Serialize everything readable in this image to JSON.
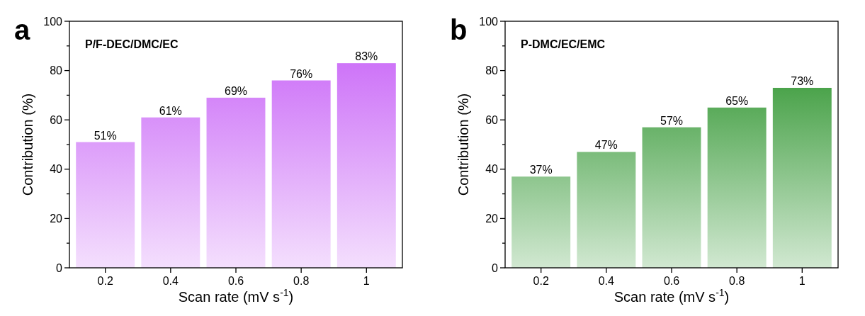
{
  "chart_data": [
    {
      "type": "bar",
      "title": "P/F-DEC/DMC/EC",
      "xlabel": "Scan rate (mV s$^{-1}$)",
      "ylabel": "Contribution (%)",
      "annotations": [
        "a"
      ],
      "categories": [
        "0.2",
        "0.4",
        "0.6",
        "0.8",
        "1"
      ],
      "values": [
        51,
        61,
        69,
        76,
        83
      ],
      "color": "#c65ef7",
      "value_labels": [
        "51%",
        "61%",
        "69%",
        "76%",
        "83%"
      ],
      "ylim": [
        0,
        100
      ],
      "yticks": [
        0,
        {
          "value": 10,
          "label": null
        },
        20,
        {
          "value": 30,
          "label": null
        },
        40,
        {
          "value": 50,
          "label": null
        },
        60,
        {
          "value": 70,
          "label": null
        },
        80,
        {
          "value": 90,
          "label": null
        },
        100
      ]
    },
    {
      "type": "bar",
      "title": "P-DMC/EC/EMC",
      "xlabel": "Scan rate (mV s$^{-1}$)",
      "ylabel": "Contribution (%)",
      "annotations": [
        "b"
      ],
      "categories": [
        "0.2",
        "0.4",
        "0.6",
        "0.8",
        "1"
      ],
      "values": [
        37,
        47,
        57,
        65,
        73
      ],
      "color": "#1a8a1a",
      "value_labels": [
        "37%",
        "47%",
        "57%",
        "65%",
        "73%"
      ],
      "ylim": [
        0,
        100
      ],
      "yticks": [
        0,
        {
          "value": 10,
          "label": null
        },
        20,
        {
          "value": 30,
          "label": null
        },
        40,
        {
          "value": 50,
          "label": null
        },
        60,
        {
          "value": 70,
          "label": null
        },
        80,
        {
          "value": 90,
          "label": null
        },
        100
      ]
    }
  ]
}
